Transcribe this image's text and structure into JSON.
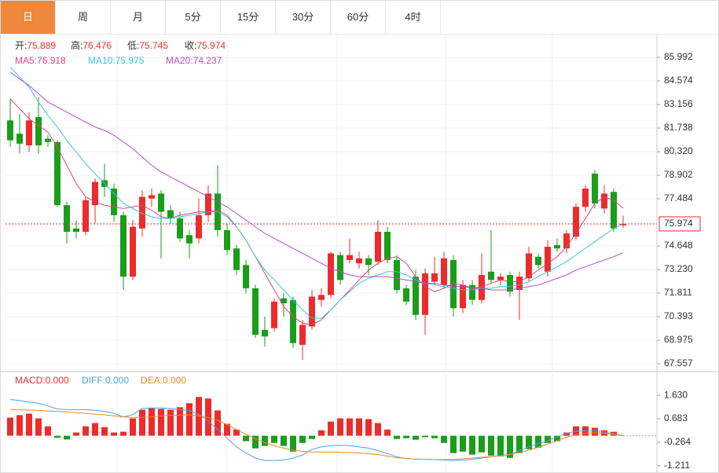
{
  "tabs": [
    "日",
    "周",
    "月",
    "5分",
    "15分",
    "30分",
    "60分",
    "4时"
  ],
  "active_tab": 0,
  "chart_data": [
    {
      "type": "candlestick",
      "info": [
        {
          "label": "开:",
          "value": 75.889
        },
        {
          "label": "高:",
          "value": 76.476
        },
        {
          "label": "低:",
          "value": 75.745
        },
        {
          "label": "收:",
          "value": 75.974
        }
      ],
      "up_color": "#ee2b2b",
      "down_color": "#1a9e1a",
      "info_color": "#e8322c",
      "price_line": true,
      "ylim": [
        67.18,
        87.27
      ],
      "yticks": [
        85.992,
        84.574,
        83.156,
        81.738,
        {
          "value": 80.32,
          "label": "80.320"
        },
        78.902,
        77.484,
        74.648,
        {
          "value": 73.23,
          "label": "73.230"
        },
        71.811,
        70.393,
        68.975,
        67.557
      ],
      "grid": true,
      "candles": [
        {
          "open": 82.2,
          "high": 83.5,
          "low": 80.6,
          "close": 81.0
        },
        {
          "open": 81.4,
          "high": 82.6,
          "low": 80.2,
          "close": 80.8
        },
        {
          "open": 80.7,
          "high": 82.7,
          "low": 80.3,
          "close": 82.2
        },
        {
          "open": 82.4,
          "high": 83.6,
          "low": 80.2,
          "close": 80.7
        },
        {
          "open": 81.1,
          "high": 81.3,
          "low": 80.6,
          "close": 80.9
        },
        {
          "open": 80.9,
          "high": 81.0,
          "low": 77.0,
          "close": 77.1
        },
        {
          "open": 77.1,
          "high": 77.3,
          "low": 74.8,
          "close": 75.5
        },
        {
          "open": 75.7,
          "high": 76.2,
          "low": 75.1,
          "close": 75.5
        },
        {
          "open": 75.5,
          "high": 77.6,
          "low": 75.3,
          "close": 77.4
        },
        {
          "open": 77.1,
          "high": 78.7,
          "low": 76.0,
          "close": 78.5
        },
        {
          "open": 78.6,
          "high": 79.6,
          "low": 77.6,
          "close": 78.2
        },
        {
          "open": 78.1,
          "high": 78.4,
          "low": 76.1,
          "close": 76.5
        },
        {
          "open": 76.5,
          "high": 76.7,
          "low": 72.0,
          "close": 72.8
        },
        {
          "open": 72.8,
          "high": 76.2,
          "low": 72.6,
          "close": 75.8
        },
        {
          "open": 75.7,
          "high": 78.0,
          "low": 75.2,
          "close": 77.6
        },
        {
          "open": 77.5,
          "high": 78.1,
          "low": 77.0,
          "close": 77.7
        },
        {
          "open": 77.8,
          "high": 78.0,
          "low": 73.9,
          "close": 76.7
        },
        {
          "open": 76.8,
          "high": 77.1,
          "low": 76.0,
          "close": 76.3
        },
        {
          "open": 76.3,
          "high": 76.7,
          "low": 74.9,
          "close": 75.1
        },
        {
          "open": 75.3,
          "high": 75.6,
          "low": 73.9,
          "close": 74.8
        },
        {
          "open": 75.1,
          "high": 77.5,
          "low": 74.8,
          "close": 76.5
        },
        {
          "open": 76.5,
          "high": 78.3,
          "low": 76.1,
          "close": 77.8
        },
        {
          "open": 77.8,
          "high": 79.5,
          "low": 75.2,
          "close": 75.6
        },
        {
          "open": 75.6,
          "high": 76.0,
          "low": 74.1,
          "close": 74.4
        },
        {
          "open": 74.5,
          "high": 74.7,
          "low": 72.9,
          "close": 73.2
        },
        {
          "open": 73.5,
          "high": 73.8,
          "low": 71.8,
          "close": 72.1
        },
        {
          "open": 72.1,
          "high": 72.3,
          "low": 69.1,
          "close": 69.3
        },
        {
          "open": 69.6,
          "high": 70.4,
          "low": 68.6,
          "close": 69.2
        },
        {
          "open": 69.7,
          "high": 71.5,
          "low": 69.5,
          "close": 71.3
        },
        {
          "open": 71.5,
          "high": 71.8,
          "low": 70.4,
          "close": 71.2
        },
        {
          "open": 71.4,
          "high": 71.6,
          "low": 68.5,
          "close": 68.8
        },
        {
          "open": 68.7,
          "high": 70.2,
          "low": 67.8,
          "close": 69.9
        },
        {
          "open": 69.8,
          "high": 72.0,
          "low": 69.6,
          "close": 71.6
        },
        {
          "open": 71.4,
          "high": 72.1,
          "low": 71.0,
          "close": 71.7
        },
        {
          "open": 71.7,
          "high": 74.3,
          "low": 71.5,
          "close": 74.2
        },
        {
          "open": 74.1,
          "high": 74.3,
          "low": 72.3,
          "close": 72.6
        },
        {
          "open": 73.8,
          "high": 75.1,
          "low": 73.6,
          "close": 74.1
        },
        {
          "open": 73.6,
          "high": 74.3,
          "low": 73.3,
          "close": 73.9
        },
        {
          "open": 73.9,
          "high": 74.1,
          "low": 72.9,
          "close": 73.5
        },
        {
          "open": 73.7,
          "high": 76.2,
          "low": 73.5,
          "close": 75.5
        },
        {
          "open": 75.5,
          "high": 75.8,
          "low": 73.6,
          "close": 73.8
        },
        {
          "open": 73.8,
          "high": 74.1,
          "low": 71.8,
          "close": 72.0
        },
        {
          "open": 72.1,
          "high": 72.3,
          "low": 71.1,
          "close": 71.3
        },
        {
          "open": 72.8,
          "high": 73.2,
          "low": 70.2,
          "close": 70.5
        },
        {
          "open": 70.5,
          "high": 73.3,
          "low": 69.3,
          "close": 73.0
        },
        {
          "open": 72.5,
          "high": 74.0,
          "low": 72.3,
          "close": 73.0
        },
        {
          "open": 72.3,
          "high": 74.3,
          "low": 72.1,
          "close": 73.9
        },
        {
          "open": 73.8,
          "high": 74.1,
          "low": 70.4,
          "close": 70.9
        },
        {
          "open": 70.9,
          "high": 72.6,
          "low": 70.6,
          "close": 72.3
        },
        {
          "open": 72.3,
          "high": 72.6,
          "low": 71.1,
          "close": 71.4
        },
        {
          "open": 71.4,
          "high": 74.2,
          "low": 71.2,
          "close": 72.9
        },
        {
          "open": 73.1,
          "high": 75.6,
          "low": 72.4,
          "close": 72.6
        },
        {
          "open": 72.6,
          "high": 73.0,
          "low": 72.3,
          "close": 72.8
        },
        {
          "open": 72.9,
          "high": 73.1,
          "low": 71.6,
          "close": 71.9
        },
        {
          "open": 72.0,
          "high": 73.1,
          "low": 70.2,
          "close": 72.8
        },
        {
          "open": 72.7,
          "high": 74.6,
          "low": 72.5,
          "close": 74.2
        },
        {
          "open": 74.0,
          "high": 74.2,
          "low": 73.3,
          "close": 73.5
        },
        {
          "open": 73.1,
          "high": 75.0,
          "low": 72.8,
          "close": 74.6
        },
        {
          "open": 74.7,
          "high": 75.1,
          "low": 74.3,
          "close": 74.5
        },
        {
          "open": 74.5,
          "high": 75.6,
          "low": 74.2,
          "close": 75.4
        },
        {
          "open": 75.2,
          "high": 77.2,
          "low": 75.0,
          "close": 77.0
        },
        {
          "open": 77.0,
          "high": 78.3,
          "low": 76.7,
          "close": 78.1
        },
        {
          "open": 79.0,
          "high": 79.2,
          "low": 76.9,
          "close": 77.2
        },
        {
          "open": 76.9,
          "high": 78.3,
          "low": 76.6,
          "close": 77.8
        },
        {
          "open": 77.9,
          "high": 78.1,
          "low": 75.5,
          "close": 75.7
        },
        {
          "open": 75.889,
          "high": 76.476,
          "low": 75.745,
          "close": 75.974
        }
      ],
      "series": [
        {
          "name": "MA5:",
          "value": 76.918,
          "color": "#e0457b",
          "values": [
            83.5,
            82.9,
            82.3,
            81.9,
            81.5,
            80.6,
            79.5,
            78.4,
            77.6,
            77.3,
            77.1,
            77.0,
            76.9,
            77.0,
            77.1,
            76.8,
            76.4,
            76.3,
            76.5,
            76.6,
            76.7,
            76.7,
            76.8,
            76.5,
            75.8,
            75.0,
            74.0,
            73.0,
            72.0,
            71.0,
            70.4,
            70.0,
            69.9,
            70.2,
            70.8,
            71.4,
            72.0,
            72.6,
            73.2,
            73.6,
            73.9,
            74.0,
            73.6,
            72.8,
            72.2,
            71.9,
            72.1,
            72.4,
            72.3,
            72.1,
            72.2,
            72.4,
            72.6,
            72.5,
            72.5,
            72.8,
            73.2,
            73.6,
            74.0,
            74.6,
            75.4,
            76.3,
            77.2,
            77.6,
            77.4,
            76.918
          ]
        },
        {
          "name": "MA10:",
          "value": 75.975,
          "color": "#3cc3d6",
          "values": [
            85.4,
            84.8,
            84.2,
            83.3,
            82.5,
            81.8,
            81.0,
            80.3,
            79.6,
            79.0,
            78.4,
            77.8,
            77.2,
            76.9,
            76.6,
            76.4,
            76.3,
            76.3,
            76.4,
            76.5,
            76.6,
            76.7,
            76.7,
            76.4,
            75.8,
            75.0,
            74.0,
            73.2,
            72.6,
            72.0,
            71.4,
            70.8,
            70.3,
            70.3,
            70.8,
            71.4,
            71.9,
            72.4,
            72.7,
            72.9,
            73.1,
            73.1,
            72.9,
            72.6,
            72.4,
            72.3,
            72.2,
            72.1,
            72.0,
            72.0,
            72.1,
            72.1,
            72.2,
            72.2,
            72.3,
            72.5,
            72.8,
            73.1,
            73.4,
            73.7,
            74.1,
            74.5,
            74.9,
            75.3,
            75.7,
            75.975
          ]
        },
        {
          "name": "MA20:",
          "value": 74.237,
          "color": "#b44fc6",
          "values": [
            85.1,
            84.7,
            84.3,
            83.8,
            83.3,
            83.0,
            82.7,
            82.4,
            82.1,
            81.8,
            81.6,
            81.3,
            80.9,
            80.5,
            80.0,
            79.5,
            79.1,
            78.8,
            78.5,
            78.2,
            77.9,
            77.6,
            77.3,
            77.0,
            76.6,
            76.2,
            75.8,
            75.4,
            75.1,
            74.8,
            74.5,
            74.2,
            73.9,
            73.6,
            73.3,
            73.1,
            72.9,
            72.8,
            72.8,
            72.8,
            72.8,
            72.7,
            72.6,
            72.5,
            72.4,
            72.4,
            72.3,
            72.2,
            72.2,
            72.1,
            72.1,
            72.0,
            72.0,
            72.0,
            72.1,
            72.2,
            72.3,
            72.5,
            72.7,
            72.9,
            73.2,
            73.4,
            73.6,
            73.8,
            74.0,
            74.237
          ]
        }
      ]
    },
    {
      "type": "macd",
      "ylim": [
        -1.47,
        2.52
      ],
      "yticks": [
        {
          "value": 1.63,
          "label": "1.630"
        },
        0.683,
        -0.264,
        -1.211
      ],
      "up_color": "#ee2b2b",
      "down_color": "#1a9e1a",
      "series": [
        {
          "name": "MACD:",
          "value": 0,
          "value_label": "0.000",
          "color": "#e8322c",
          "kind": "bar",
          "values": [
            0.73,
            0.83,
            0.89,
            0.7,
            0.38,
            -0.08,
            -0.15,
            0.13,
            0.38,
            0.51,
            0.35,
            0.13,
            0.16,
            0.7,
            1.05,
            1.11,
            1.08,
            1.05,
            1.15,
            1.31,
            1.56,
            1.5,
            1.02,
            0.48,
            0.25,
            -0.22,
            -0.51,
            -0.41,
            -0.29,
            -0.41,
            -0.64,
            -0.29,
            -0.13,
            0.22,
            0.57,
            0.7,
            0.7,
            0.7,
            0.67,
            0.51,
            0.25,
            -0.13,
            -0.1,
            -0.16,
            -0.06,
            -0.1,
            -0.29,
            -0.7,
            -0.64,
            -0.76,
            -0.67,
            -0.8,
            -0.83,
            -0.89,
            -0.7,
            -0.54,
            -0.48,
            -0.29,
            -0.22,
            0.13,
            0.38,
            0.38,
            0.32,
            0.22,
            0.16,
            0
          ]
        },
        {
          "name": "DIFF:",
          "value": 0,
          "value_label": "0.000",
          "color": "#4aa3e8",
          "kind": "line",
          "values": [
            1.46,
            1.42,
            1.36,
            1.31,
            1.2,
            1.08,
            1.05,
            1.05,
            1.05,
            1.02,
            0.98,
            0.9,
            0.76,
            0.85,
            1.1,
            1.12,
            1.12,
            1.1,
            1.06,
            1.02,
            0.85,
            0.6,
            0.25,
            -0.1,
            -0.45,
            -0.7,
            -0.9,
            -1.0,
            -1.0,
            -0.98,
            -0.9,
            -0.78,
            -0.55,
            -0.45,
            -0.4,
            -0.38,
            -0.4,
            -0.45,
            -0.5,
            -0.6,
            -0.72,
            -0.85,
            -0.92,
            -0.94,
            -0.95,
            -0.96,
            -0.98,
            -1.0,
            -0.98,
            -0.95,
            -0.9,
            -0.85,
            -0.8,
            -0.76,
            -0.6,
            -0.45,
            -0.32,
            -0.2,
            -0.05,
            0.1,
            0.18,
            0.2,
            0.2,
            0.15,
            0.08,
            0.0
          ]
        },
        {
          "name": "DEA:",
          "value": 0,
          "value_label": "0.000",
          "color": "#f08a25",
          "kind": "line",
          "values": [
            1.05,
            1.04,
            1.03,
            1.02,
            1.0,
            0.98,
            0.96,
            0.93,
            0.9,
            0.87,
            0.84,
            0.8,
            0.76,
            0.74,
            0.74,
            0.76,
            0.8,
            0.82,
            0.83,
            0.84,
            0.8,
            0.74,
            0.62,
            0.45,
            0.25,
            0.06,
            -0.12,
            -0.28,
            -0.4,
            -0.5,
            -0.58,
            -0.63,
            -0.65,
            -0.66,
            -0.66,
            -0.67,
            -0.68,
            -0.7,
            -0.72,
            -0.76,
            -0.82,
            -0.88,
            -0.92,
            -0.94,
            -0.95,
            -0.96,
            -0.96,
            -0.95,
            -0.93,
            -0.9,
            -0.87,
            -0.84,
            -0.8,
            -0.75,
            -0.68,
            -0.58,
            -0.46,
            -0.34,
            -0.2,
            -0.06,
            0.04,
            0.1,
            0.12,
            0.1,
            0.05,
            0.0
          ]
        }
      ]
    }
  ]
}
